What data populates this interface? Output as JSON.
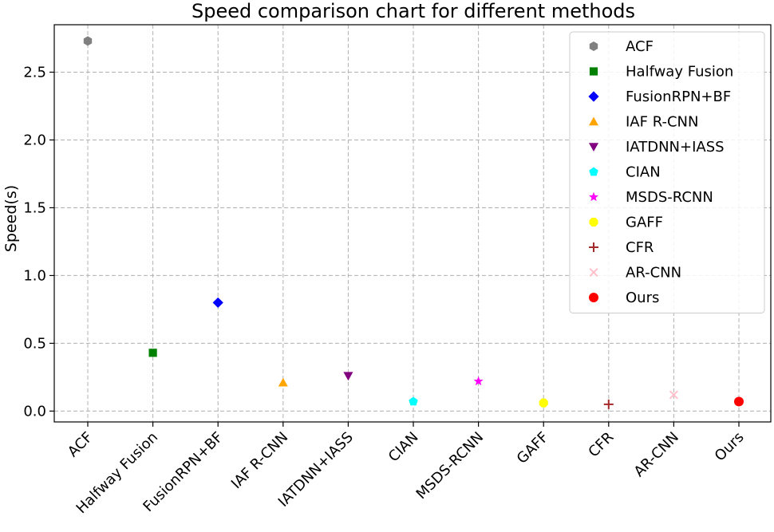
{
  "chart_data": {
    "type": "scatter",
    "title": "Speed comparison chart for different methods",
    "xlabel": "",
    "ylabel": "Speed(s)",
    "ylim": [
      -0.08,
      2.85
    ],
    "yticks": [
      "0.0",
      "0.5",
      "1.0",
      "1.5",
      "2.0",
      "2.5"
    ],
    "ytick_values": [
      0.0,
      0.5,
      1.0,
      1.5,
      2.0,
      2.5
    ],
    "grid": true,
    "legend_position": "top-right",
    "categories": [
      "ACF",
      "Halfway Fusion",
      "FusionRPN+BF",
      "IAF R-CNN",
      "IATDNN+IASS",
      "CIAN",
      "MSDS-RCNN",
      "GAFF",
      "CFR",
      "AR-CNN",
      "Ours"
    ],
    "series": [
      {
        "name": "ACF",
        "value": 2.73,
        "color": "#808080",
        "marker": "hexagon"
      },
      {
        "name": "Halfway Fusion",
        "value": 0.43,
        "color": "#008000",
        "marker": "square"
      },
      {
        "name": "FusionRPN+BF",
        "value": 0.8,
        "color": "#0000ff",
        "marker": "diamond"
      },
      {
        "name": "IAF R-CNN",
        "value": 0.21,
        "color": "#ffa500",
        "marker": "triangle-up"
      },
      {
        "name": "IATDNN+IASS",
        "value": 0.26,
        "color": "#800080",
        "marker": "triangle-down"
      },
      {
        "name": "CIAN",
        "value": 0.07,
        "color": "#00ffff",
        "marker": "pentagon"
      },
      {
        "name": "MSDS-RCNN",
        "value": 0.22,
        "color": "#ff00ff",
        "marker": "star"
      },
      {
        "name": "GAFF",
        "value": 0.06,
        "color": "#ffff00",
        "marker": "octagon"
      },
      {
        "name": "CFR",
        "value": 0.05,
        "color": "#a52a2a",
        "marker": "plus"
      },
      {
        "name": "AR-CNN",
        "value": 0.12,
        "color": "#ffc0cb",
        "marker": "x"
      },
      {
        "name": "Ours",
        "value": 0.07,
        "color": "#ff0000",
        "marker": "circle"
      }
    ]
  }
}
